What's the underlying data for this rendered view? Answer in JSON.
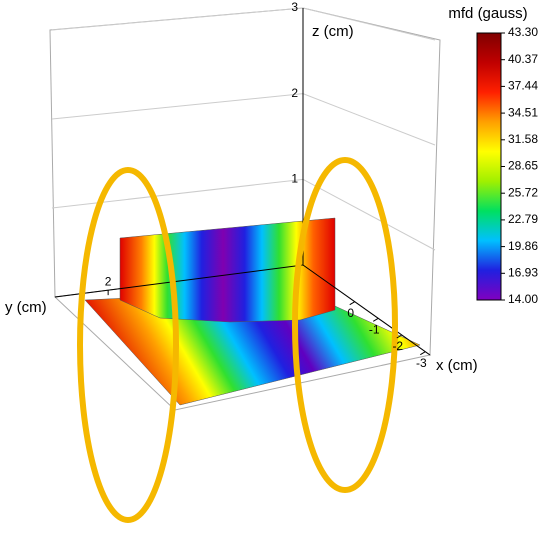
{
  "chart_data": {
    "type": "surface3d",
    "xlabel": "x (cm)",
    "ylabel": "y (cm)",
    "zlabel": "z (cm)",
    "xlim": [
      2.2,
      -3.2
    ],
    "xticks": [
      0,
      -1,
      -2,
      -3
    ],
    "ylim": [
      3.5,
      -3.5
    ],
    "yticks": [
      2
    ],
    "zlim": [
      0,
      3
    ],
    "zticks": [
      1,
      2,
      3
    ],
    "grid": true,
    "colorbar": {
      "title": "mfd (gauss)",
      "lim": [
        14,
        43.3
      ],
      "colors": [
        "#8000c0",
        "#2020e0",
        "#00c0ff",
        "#00e060",
        "#a0f000",
        "#ffff00",
        "#ffa000",
        "#ff2000",
        "#c00000",
        "#800000"
      ],
      "ticks": [
        {
          "value": 43.3,
          "label": "43.30"
        },
        40.37,
        37.44,
        34.51,
        31.58,
        28.65,
        25.72,
        22.79,
        19.86,
        16.93,
        {
          "value": 14,
          "label": "14.00"
        }
      ]
    }
  }
}
